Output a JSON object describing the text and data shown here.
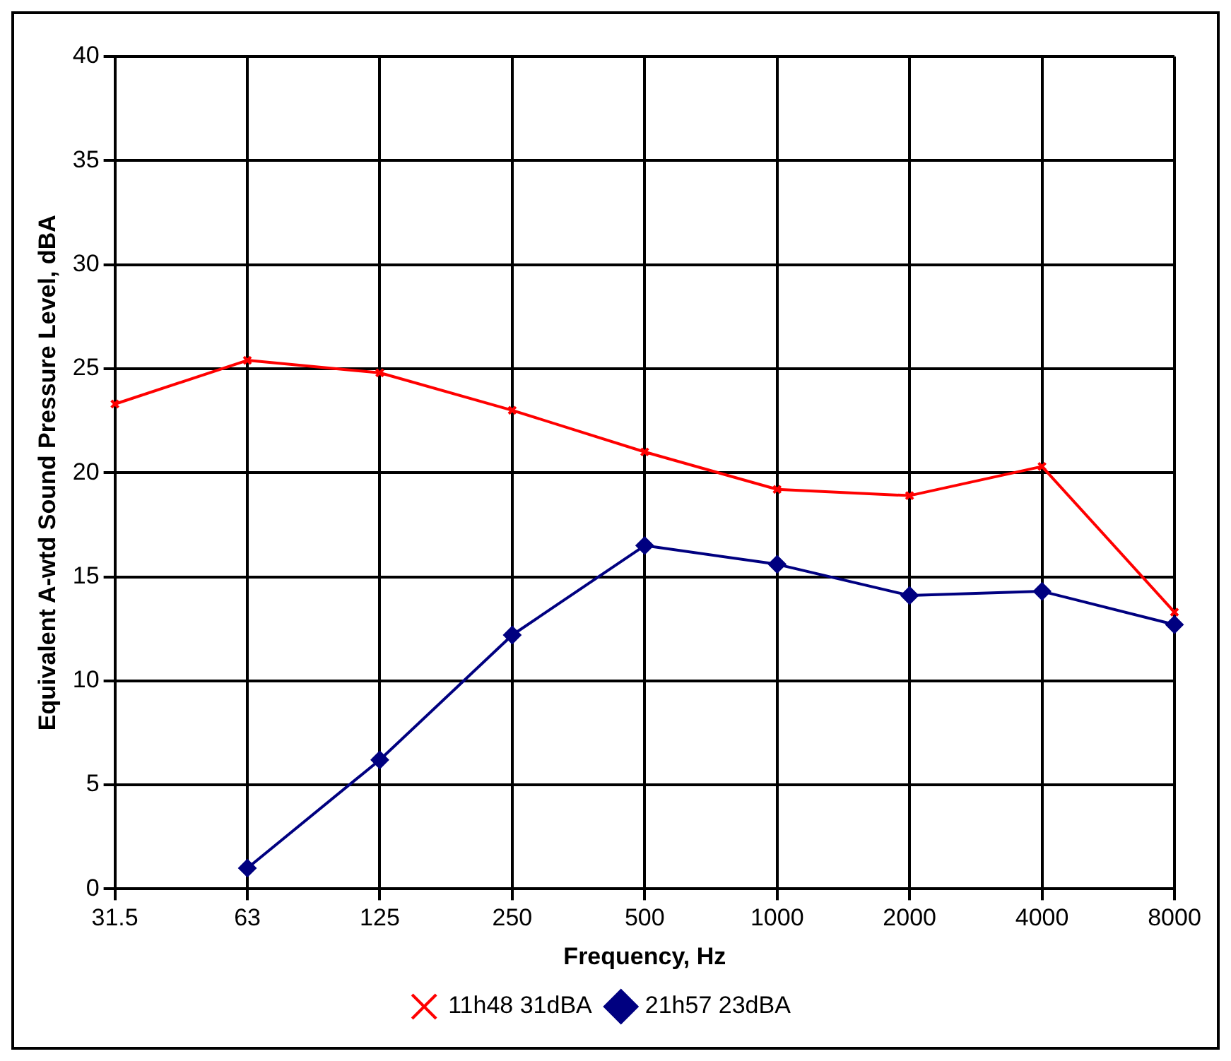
{
  "chart_data": {
    "type": "line",
    "xlabel": "Frequency, Hz",
    "ylabel": "Equivalent A-wtd Sound Pressure Level, dBA",
    "categories": [
      "31.5",
      "63",
      "125",
      "250",
      "500",
      "1000",
      "2000",
      "4000",
      "8000"
    ],
    "ylim": [
      0,
      40
    ],
    "yticks": [
      0,
      5,
      10,
      15,
      20,
      25,
      30,
      35,
      40
    ],
    "grid": true,
    "legend": "bottom",
    "line_style": "solid",
    "series": [
      {
        "name": "11h48 31dBA",
        "color": "#ff0000",
        "marker": "cross",
        "values": [
          23.3,
          25.4,
          24.8,
          23.0,
          21.0,
          19.2,
          18.9,
          20.3,
          13.3
        ]
      },
      {
        "name": "21h57 23dBA",
        "color": "#000080",
        "marker": "diamond",
        "values": [
          null,
          1.0,
          6.2,
          12.2,
          16.5,
          15.6,
          14.1,
          14.3,
          12.7
        ]
      }
    ]
  }
}
